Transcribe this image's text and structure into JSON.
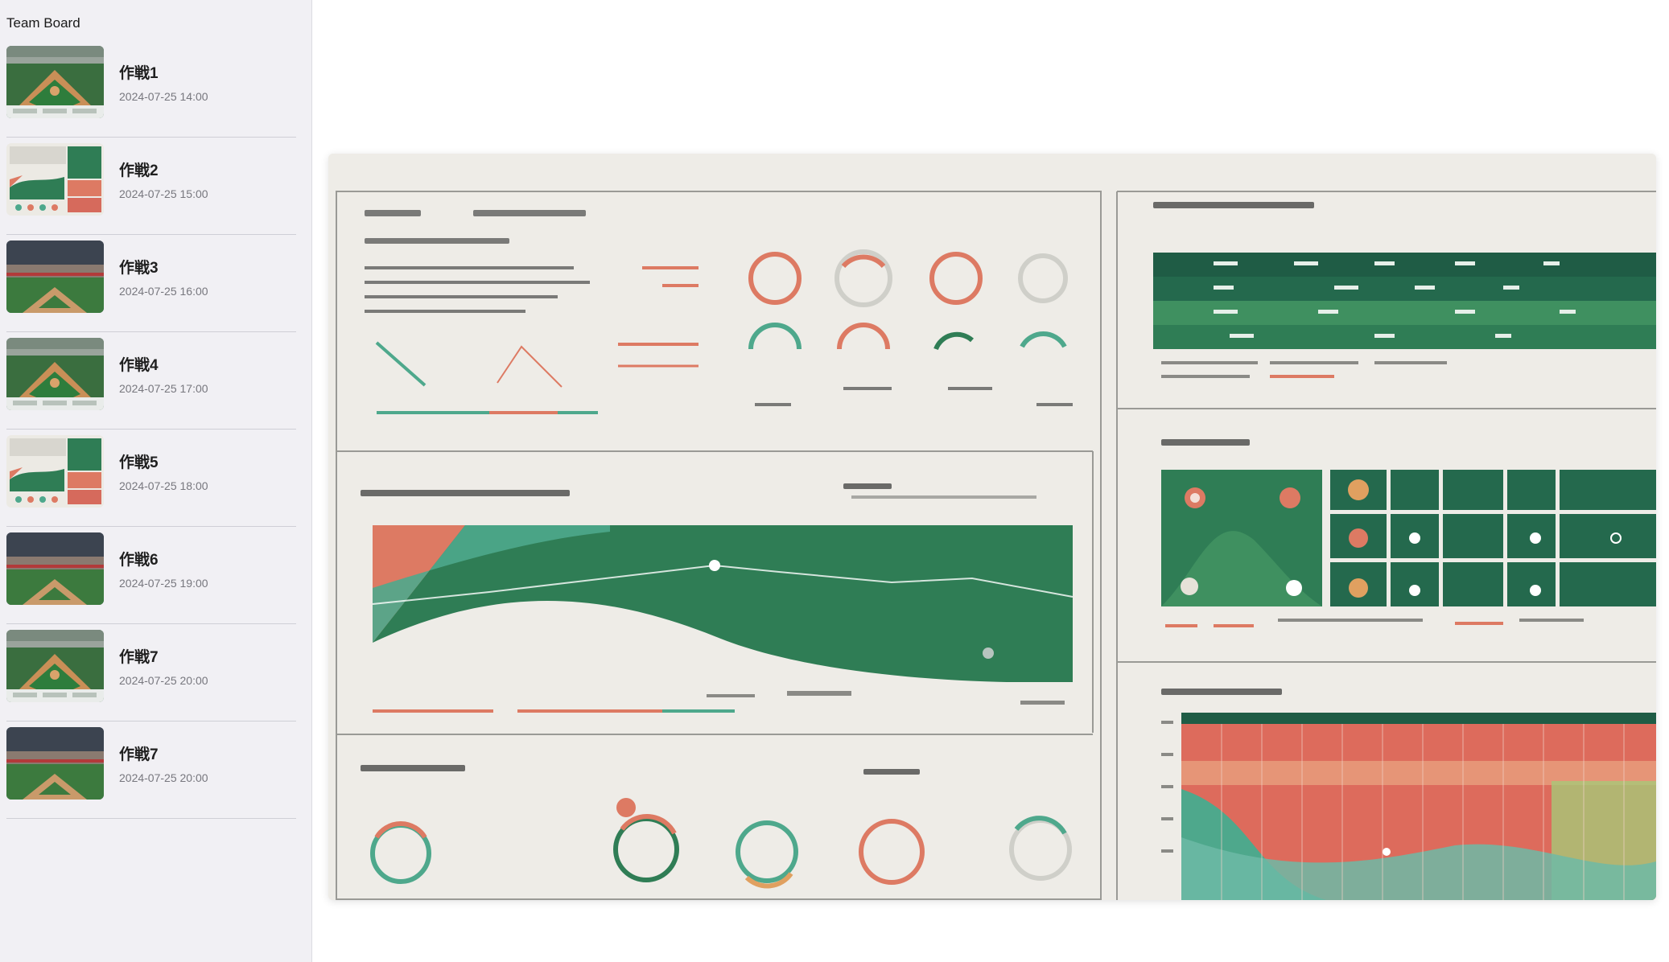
{
  "sidebar": {
    "title": "Team Board",
    "items": [
      {
        "title": "作戦1",
        "date": "2024-07-25 14:00",
        "thumb": "baseball-field-icon"
      },
      {
        "title": "作戦2",
        "date": "2024-07-25 15:00",
        "thumb": "dashboard-chart-icon"
      },
      {
        "title": "作戦3",
        "date": "2024-07-25 16:00",
        "thumb": "stadium-photo-icon"
      },
      {
        "title": "作戦4",
        "date": "2024-07-25 17:00",
        "thumb": "baseball-field-icon"
      },
      {
        "title": "作戦5",
        "date": "2024-07-25 18:00",
        "thumb": "dashboard-chart-icon"
      },
      {
        "title": "作戦6",
        "date": "2024-07-25 19:00",
        "thumb": "stadium-photo-icon"
      },
      {
        "title": "作戦7",
        "date": "2024-07-25 20:00",
        "thumb": "baseball-field-icon"
      },
      {
        "title": "作戦7",
        "date": "2024-07-25 20:00",
        "thumb": "stadium-photo-icon"
      }
    ]
  },
  "colors": {
    "sidebar_bg": "#f1f0f4",
    "field_green": "#2e7d3c",
    "chart_green": "#2f7d55",
    "chart_coral": "#dd7a63",
    "chart_teal": "#4ea88c"
  }
}
